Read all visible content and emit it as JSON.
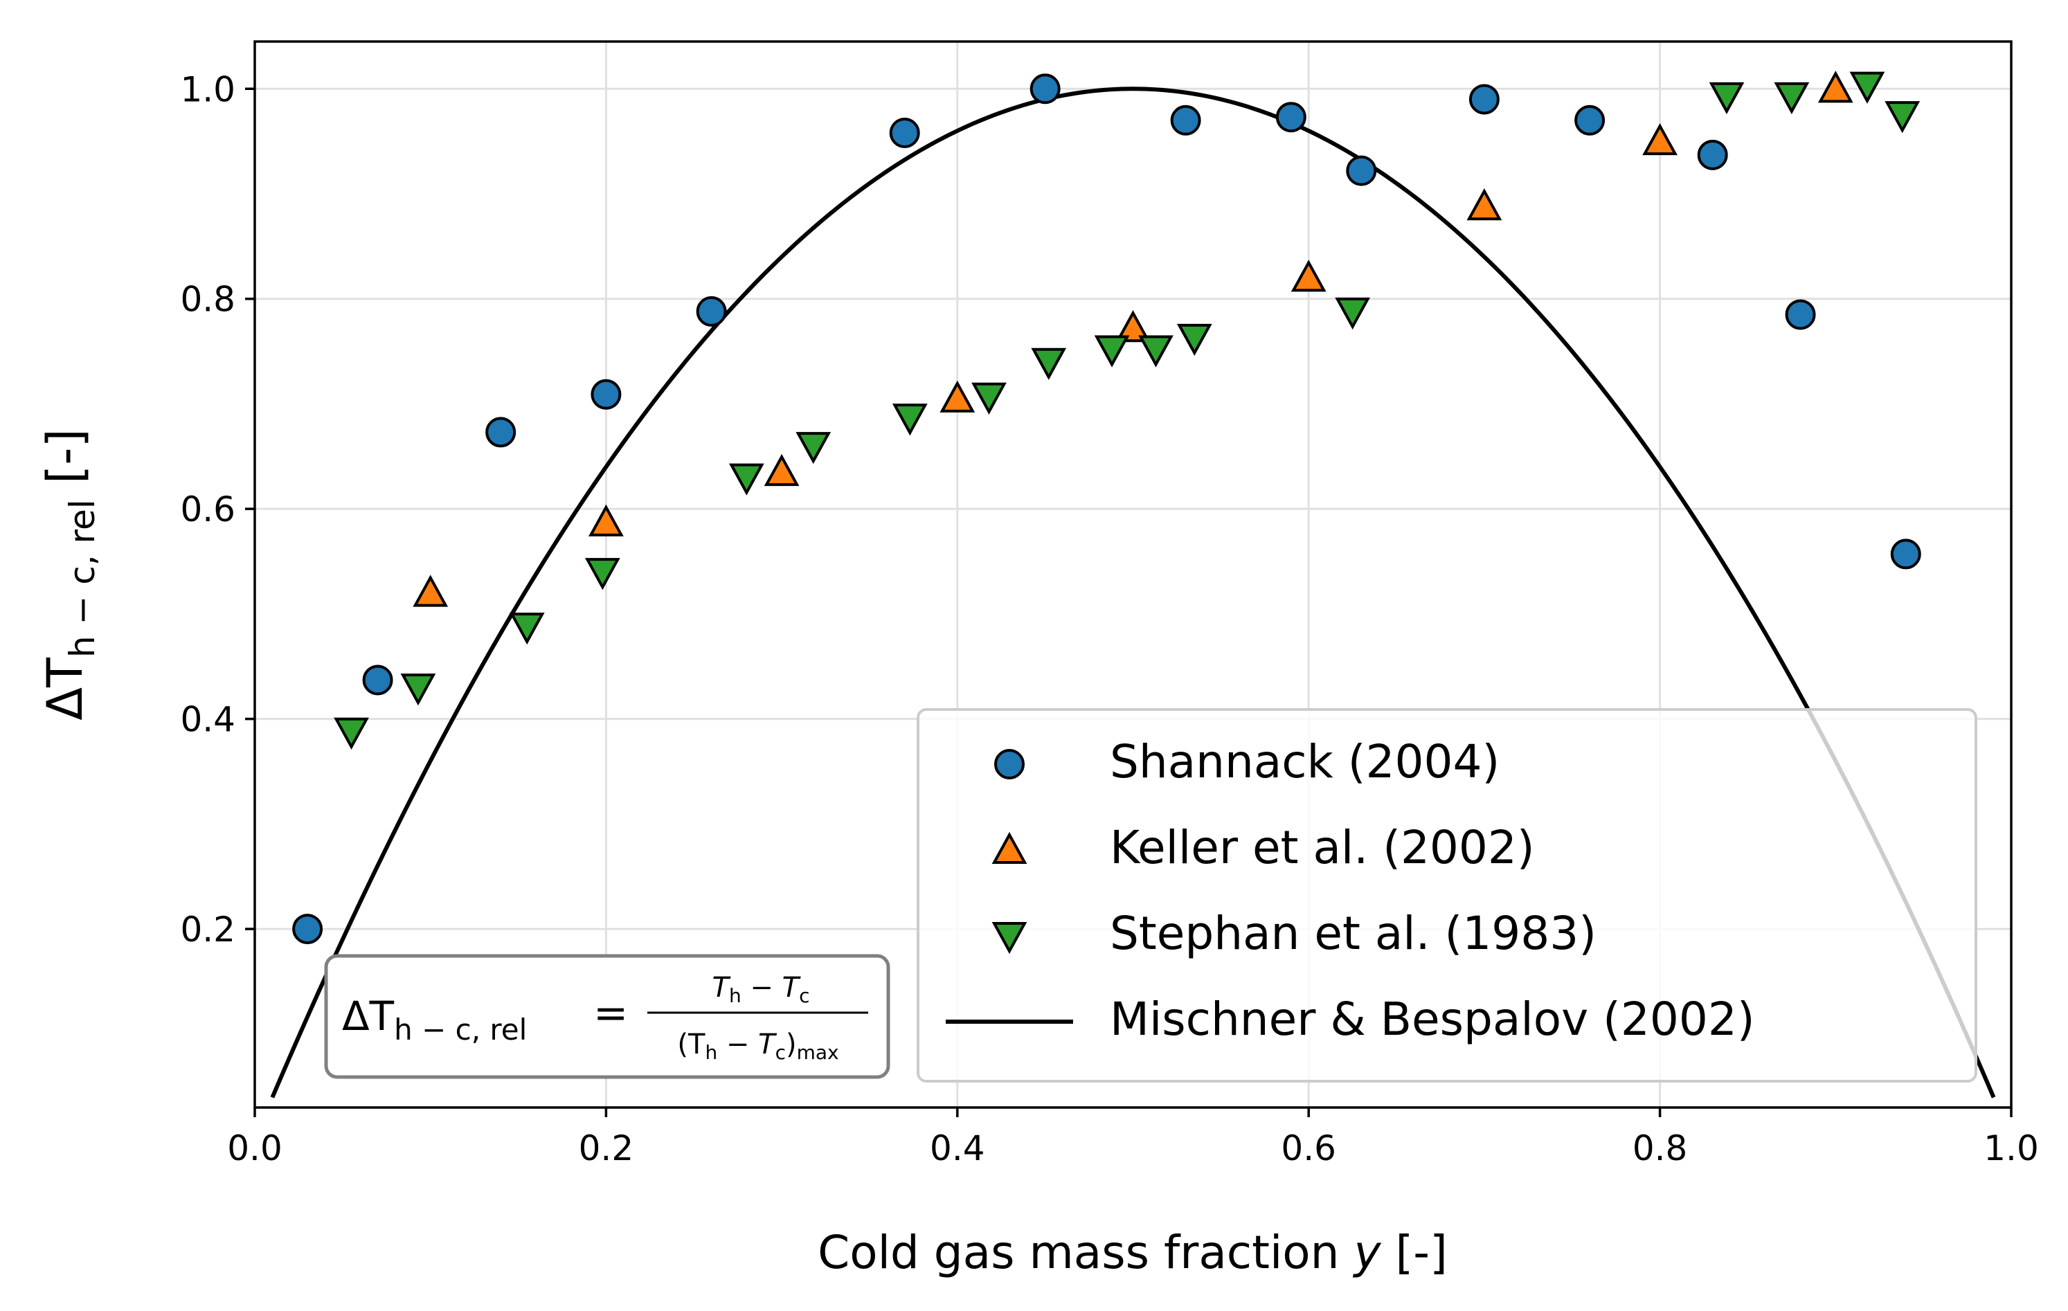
{
  "chart_data": {
    "type": "scatter",
    "title": "",
    "xlabel": "Cold gas mass fraction",
    "xlabel_var": "y",
    "xlabel_unit": "[-]",
    "ylabel": "ΔT",
    "ylabel_sub": "h − c, rel",
    "ylabel_unit": "[-]",
    "xlim": [
      0.0,
      1.0
    ],
    "ylim": [
      0.03,
      1.045
    ],
    "xticks": [
      0.0,
      0.2,
      0.4,
      0.6,
      0.8,
      1.0
    ],
    "xtick_labels": [
      "0.0",
      "0.2",
      "0.4",
      "0.6",
      "0.8",
      "1.0"
    ],
    "yticks": [
      0.2,
      0.4,
      0.6,
      0.8,
      1.0
    ],
    "ytick_labels": [
      "0.2",
      "0.4",
      "0.6",
      "0.8",
      "1.0"
    ],
    "grid": true,
    "legend_position": "bottom-right",
    "series": [
      {
        "name": "Shannack (2004)",
        "marker": "circle",
        "color": "#1f77b4",
        "points": [
          [
            0.03,
            0.2
          ],
          [
            0.07,
            0.437
          ],
          [
            0.14,
            0.673
          ],
          [
            0.2,
            0.709
          ],
          [
            0.26,
            0.788
          ],
          [
            0.37,
            0.958
          ],
          [
            0.45,
            1.0
          ],
          [
            0.53,
            0.97
          ],
          [
            0.59,
            0.973
          ],
          [
            0.63,
            0.922
          ],
          [
            0.7,
            0.99
          ],
          [
            0.76,
            0.97
          ],
          [
            0.83,
            0.937
          ],
          [
            0.88,
            0.785
          ],
          [
            0.94,
            0.557
          ]
        ]
      },
      {
        "name": "Keller et al. (2002)",
        "marker": "triangle-up",
        "color": "#ff7f0e",
        "points": [
          [
            0.1,
            0.52
          ],
          [
            0.2,
            0.587
          ],
          [
            0.3,
            0.635
          ],
          [
            0.4,
            0.705
          ],
          [
            0.5,
            0.772
          ],
          [
            0.6,
            0.82
          ],
          [
            0.7,
            0.888
          ],
          [
            0.8,
            0.95
          ],
          [
            0.9,
            1.0
          ]
        ]
      },
      {
        "name": "Stephan et al. (1983)",
        "marker": "triangle-down",
        "color": "#2ca02c",
        "points": [
          [
            0.055,
            0.388
          ],
          [
            0.093,
            0.43
          ],
          [
            0.155,
            0.488
          ],
          [
            0.198,
            0.54
          ],
          [
            0.28,
            0.63
          ],
          [
            0.318,
            0.66
          ],
          [
            0.373,
            0.687
          ],
          [
            0.418,
            0.707
          ],
          [
            0.452,
            0.74
          ],
          [
            0.488,
            0.752
          ],
          [
            0.513,
            0.752
          ],
          [
            0.535,
            0.763
          ],
          [
            0.625,
            0.788
          ],
          [
            0.838,
            0.993
          ],
          [
            0.875,
            0.993
          ],
          [
            0.918,
            1.003
          ],
          [
            0.938,
            0.975
          ]
        ]
      },
      {
        "name": "Mischner & Bespalov (2002)",
        "marker": "line",
        "color": "#000000",
        "formula": "4*y*(1-y)",
        "x_range": [
          0.01,
          0.99
        ]
      }
    ],
    "annotation": {
      "lhs": "ΔT",
      "lhs_sub": "h − c, rel",
      "equals": "=",
      "numerator": "T",
      "numerator_sub1": "h",
      "numerator_minus": " − ",
      "numerator_t2": "T",
      "numerator_sub2": "c",
      "denominator_open": "(T",
      "denominator_sub1": "h",
      "denominator_minus": " − ",
      "denominator_t2": "T",
      "denominator_sub2": "c",
      "denominator_close": ")",
      "denominator_sub3": "max"
    }
  }
}
